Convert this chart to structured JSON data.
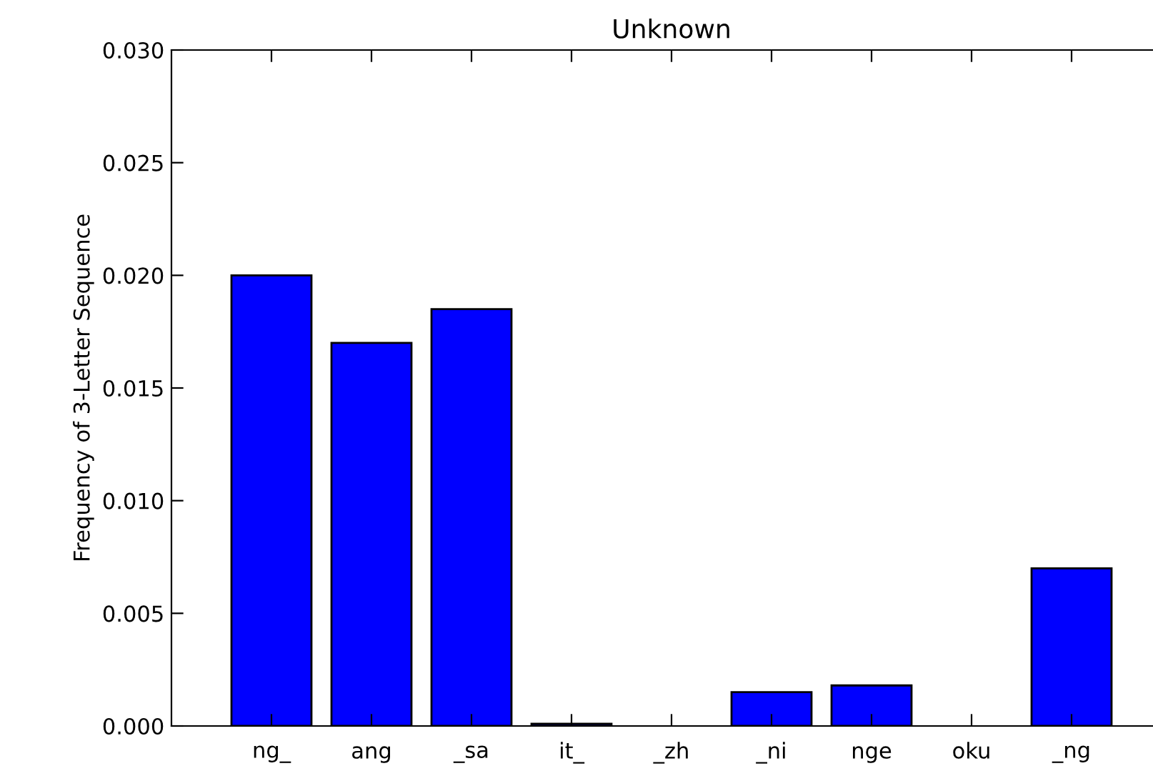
{
  "chart_data": {
    "type": "bar",
    "title": "Unknown",
    "ylabel": "Frequency of 3-Letter Sequence",
    "categories": [
      "ng_",
      "ang",
      "_sa",
      "it_",
      "_zh",
      "_ni",
      "nge",
      "oku",
      "_ng"
    ],
    "values": [
      0.02,
      0.017,
      0.0185,
      0.0001,
      0,
      0.0015,
      0.0018,
      0,
      0.007
    ],
    "color": "#0000ff",
    "ylim": [
      0,
      0.03
    ],
    "yticks": [
      {
        "value": 0,
        "label": "0.000"
      },
      {
        "value": 0.005,
        "label": "0.005"
      },
      {
        "value": 0.01,
        "label": "0.010"
      },
      {
        "value": 0.015,
        "label": "0.015"
      },
      {
        "value": 0.02,
        "label": "0.020"
      },
      {
        "value": 0.025,
        "label": "0.025"
      },
      {
        "value": 0.03,
        "label": "0.030"
      }
    ],
    "grid": false
  }
}
